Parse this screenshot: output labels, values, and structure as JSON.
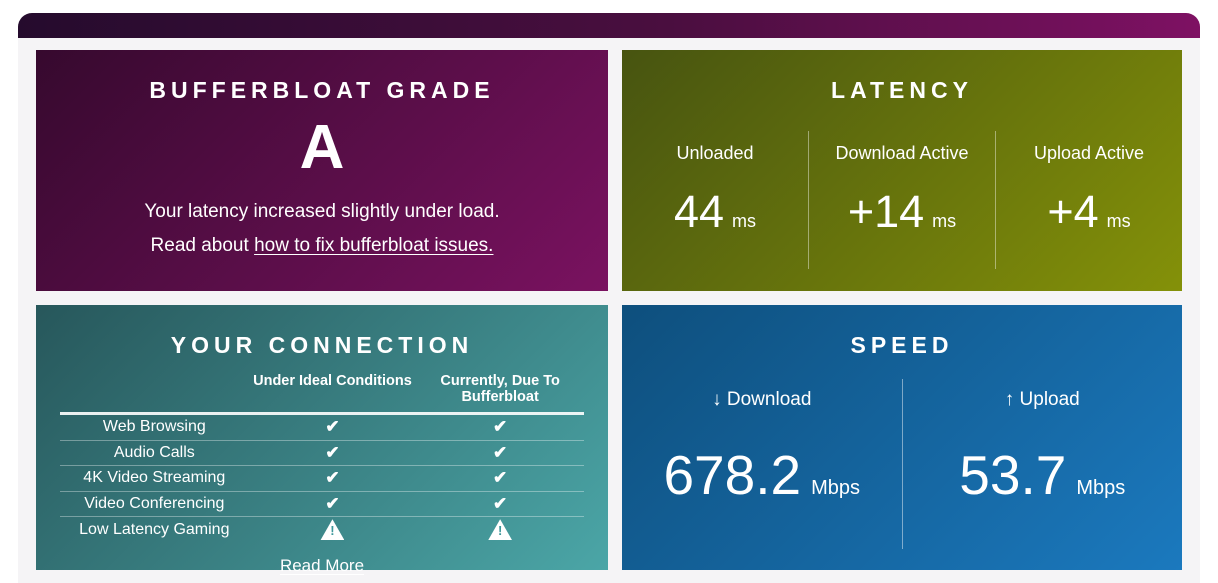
{
  "grade_card": {
    "title": "BUFFERBLOAT GRADE",
    "grade": "A",
    "message": "Your latency increased slightly under load.",
    "read_about_prefix": "Read about ",
    "read_about_link": "how to fix bufferbloat issues."
  },
  "latency_card": {
    "title": "LATENCY",
    "columns": [
      {
        "label": "Unloaded",
        "value": "44",
        "unit": "ms"
      },
      {
        "label": "Download Active",
        "value": "+14",
        "unit": "ms"
      },
      {
        "label": "Upload Active",
        "value": "+4",
        "unit": "ms"
      }
    ]
  },
  "connection_card": {
    "title": "YOUR CONNECTION",
    "column_headers": [
      "Under Ideal Conditions",
      "Currently, Due To Bufferbloat"
    ],
    "rows": [
      {
        "label": "Web Browsing",
        "ideal": "check",
        "current": "check"
      },
      {
        "label": "Audio Calls",
        "ideal": "check",
        "current": "check"
      },
      {
        "label": "4K Video Streaming",
        "ideal": "check",
        "current": "check"
      },
      {
        "label": "Video Conferencing",
        "ideal": "check",
        "current": "check"
      },
      {
        "label": "Low Latency Gaming",
        "ideal": "warning",
        "current": "warning"
      }
    ],
    "read_more": "Read More"
  },
  "speed_card": {
    "title": "SPEED",
    "download": {
      "arrow": "↓",
      "label": "Download",
      "value": "678.2",
      "unit": "Mbps"
    },
    "upload": {
      "arrow": "↑",
      "label": "Upload",
      "value": "53.7",
      "unit": "Mbps"
    }
  },
  "colors": {
    "page_bg": "#ffffff",
    "panel_bg": "#f5f4f6",
    "header_gradient": [
      "#250b2d",
      "#7e1163"
    ],
    "grade_gradient": [
      "#36092e",
      "#7a1260"
    ],
    "latency_gradient": [
      "#475410",
      "#849109"
    ],
    "connection_gradient": [
      "#27575b",
      "#4ba6a7"
    ],
    "speed_gradient": [
      "#0e4f7d",
      "#1b79be"
    ],
    "text": "#ffffff"
  }
}
